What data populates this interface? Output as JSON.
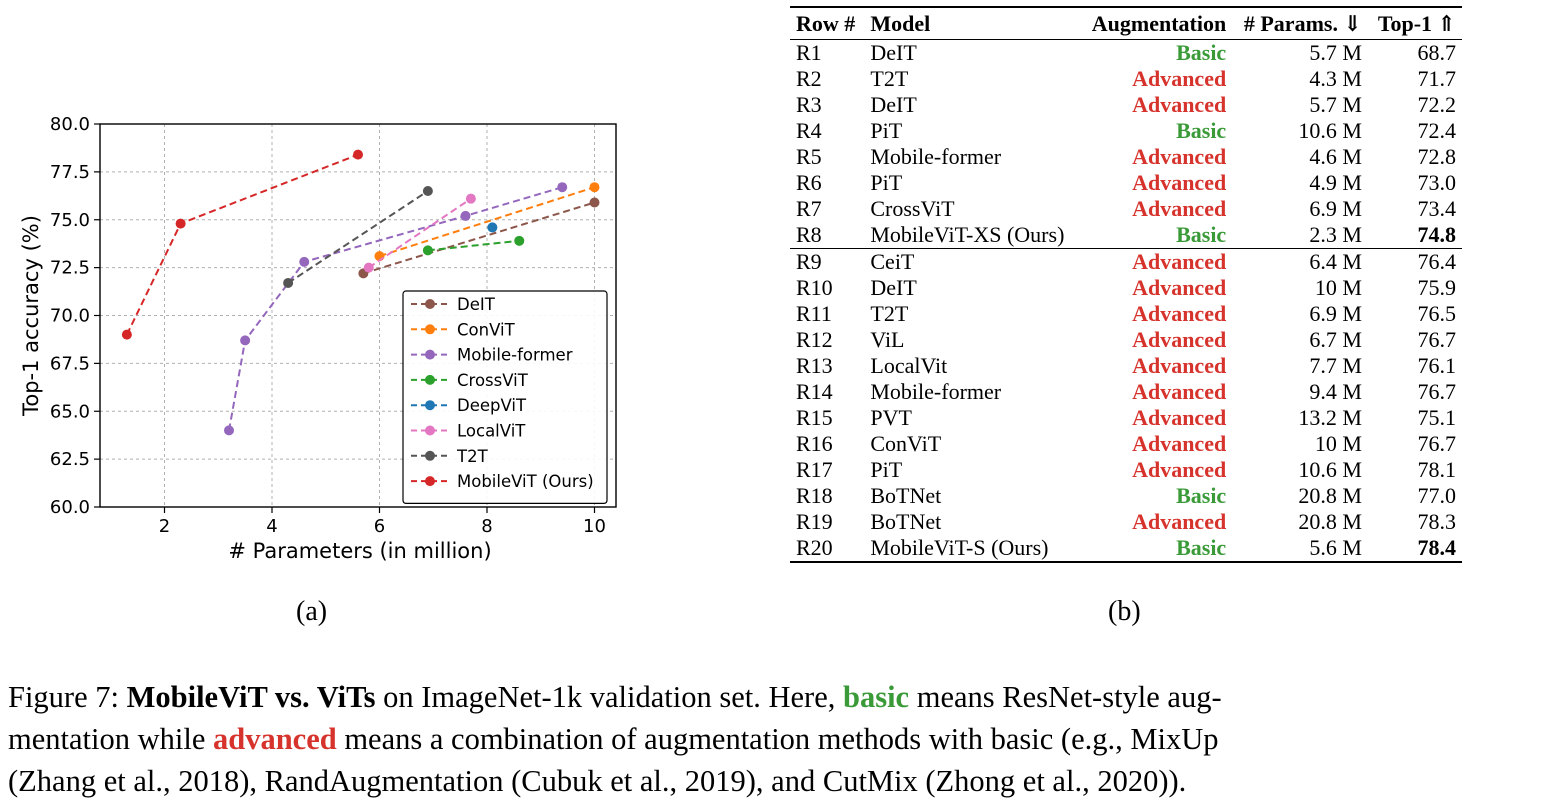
{
  "chart_data": {
    "type": "line",
    "xlabel": "# Parameters (in million)",
    "ylabel": "Top-1 accuracy (%)",
    "xlim": [
      0.8,
      10.4
    ],
    "ylim": [
      60.0,
      80.0
    ],
    "xticks": [
      "2",
      "4",
      "6",
      "8",
      "10"
    ],
    "xtick_values": [
      2,
      4,
      6,
      8,
      10
    ],
    "yticks": [
      "60.0",
      "62.5",
      "65.0",
      "67.5",
      "70.0",
      "72.5",
      "75.0",
      "77.5",
      "80.0"
    ],
    "ytick_values": [
      60.0,
      62.5,
      65.0,
      67.5,
      70.0,
      72.5,
      75.0,
      77.5,
      80.0
    ],
    "grid": true,
    "legend_position": "lower-right",
    "series": [
      {
        "name": "DeIT",
        "color": "#8c564b",
        "x": [
          5.7,
          10.0
        ],
        "y": [
          72.2,
          75.9
        ]
      },
      {
        "name": "ConViT",
        "color": "#ff7f0e",
        "x": [
          6.0,
          10.0
        ],
        "y": [
          73.1,
          76.7
        ]
      },
      {
        "name": "Mobile-former",
        "color": "#9467bd",
        "x": [
          3.2,
          3.5,
          4.6,
          7.6,
          9.4
        ],
        "y": [
          64.0,
          68.7,
          72.8,
          75.2,
          76.7
        ]
      },
      {
        "name": "CrossViT",
        "color": "#2ca02c",
        "x": [
          6.9,
          8.6
        ],
        "y": [
          73.4,
          73.9
        ]
      },
      {
        "name": "DeepViT",
        "color": "#1f77b4",
        "x": [
          8.1
        ],
        "y": [
          74.6
        ]
      },
      {
        "name": "LocalViT",
        "color": "#e377c2",
        "x": [
          5.8,
          7.7
        ],
        "y": [
          72.5,
          76.1
        ]
      },
      {
        "name": "T2T",
        "color": "#555555",
        "x": [
          4.3,
          6.9
        ],
        "y": [
          71.7,
          76.5
        ]
      },
      {
        "name": "MobileViT (Ours)",
        "color": "#d62728",
        "x": [
          1.3,
          2.3,
          5.6
        ],
        "y": [
          69.0,
          74.8,
          78.4
        ]
      }
    ]
  },
  "subcaptions": {
    "a": "(a)",
    "b": "(b)"
  },
  "table": {
    "headers": {
      "row": "Row #",
      "model": "Model",
      "augmentation": "Augmentation",
      "params": "# Params. ⇓",
      "top1": "Top-1 ⇑"
    },
    "rows": [
      {
        "row": "R1",
        "model": "DeIT",
        "aug": "Basic",
        "params": "5.7 M",
        "top1": "68.7"
      },
      {
        "row": "R2",
        "model": "T2T",
        "aug": "Advanced",
        "params": "4.3 M",
        "top1": "71.7"
      },
      {
        "row": "R3",
        "model": "DeIT",
        "aug": "Advanced",
        "params": "5.7 M",
        "top1": "72.2"
      },
      {
        "row": "R4",
        "model": "PiT",
        "aug": "Basic",
        "params": "10.6 M",
        "top1": "72.4"
      },
      {
        "row": "R5",
        "model": "Mobile-former",
        "aug": "Advanced",
        "params": "4.6 M",
        "top1": "72.8"
      },
      {
        "row": "R6",
        "model": "PiT",
        "aug": "Advanced",
        "params": "4.9 M",
        "top1": "73.0"
      },
      {
        "row": "R7",
        "model": "CrossViT",
        "aug": "Advanced",
        "params": "6.9 M",
        "top1": "73.4"
      },
      {
        "row": "R8",
        "model": "MobileViT-XS (Ours)",
        "aug": "Basic",
        "params": "2.3 M",
        "top1": "74.8",
        "best": true
      },
      {
        "row": "R9",
        "model": "CeiT",
        "aug": "Advanced",
        "params": "6.4 M",
        "top1": "76.4",
        "group_start": true
      },
      {
        "row": "R10",
        "model": "DeIT",
        "aug": "Advanced",
        "params": "10 M",
        "top1": "75.9"
      },
      {
        "row": "R11",
        "model": "T2T",
        "aug": "Advanced",
        "params": "6.9 M",
        "top1": "76.5"
      },
      {
        "row": "R12",
        "model": "ViL",
        "aug": "Advanced",
        "params": "6.7 M",
        "top1": "76.7"
      },
      {
        "row": "R13",
        "model": "LocalVit",
        "aug": "Advanced",
        "params": "7.7 M",
        "top1": "76.1"
      },
      {
        "row": "R14",
        "model": "Mobile-former",
        "aug": "Advanced",
        "params": "9.4 M",
        "top1": "76.7"
      },
      {
        "row": "R15",
        "model": "PVT",
        "aug": "Advanced",
        "params": "13.2 M",
        "top1": "75.1"
      },
      {
        "row": "R16",
        "model": "ConViT",
        "aug": "Advanced",
        "params": "10 M",
        "top1": "76.7"
      },
      {
        "row": "R17",
        "model": "PiT",
        "aug": "Advanced",
        "params": "10.6 M",
        "top1": "78.1"
      },
      {
        "row": "R18",
        "model": "BoTNet",
        "aug": "Basic",
        "params": "20.8 M",
        "top1": "77.0"
      },
      {
        "row": "R19",
        "model": "BoTNet",
        "aug": "Advanced",
        "params": "20.8 M",
        "top1": "78.3"
      },
      {
        "row": "R20",
        "model": "MobileViT-S (Ours)",
        "aug": "Basic",
        "params": "5.6 M",
        "top1": "78.4",
        "best": true
      }
    ],
    "colors": {
      "basic": "#3a9a38",
      "advanced": "#d7332d"
    }
  },
  "caption": {
    "label": "Figure 7: ",
    "bold_title": "MobileViT vs. ViTs",
    "t1": " on ImageNet-1k validation set. Here, ",
    "basic_word": "basic",
    "t2": " means ResNet-style aug-",
    "t3": "mentation while ",
    "advanced_word": "advanced",
    "t4": " means a combination of augmentation methods with basic (e.g., MixUp",
    "t5": "(Zhang et al., 2018), RandAugmentation (Cubuk et al., 2019), and CutMix (Zhong et al., 2020))."
  }
}
